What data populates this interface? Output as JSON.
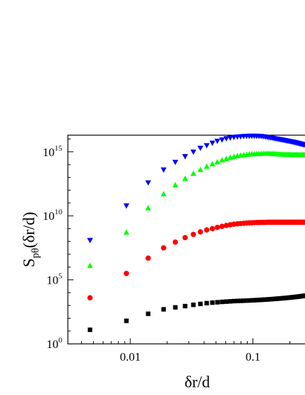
{
  "chart_data": {
    "type": "scatter",
    "title": "",
    "xlabel": "δr/d",
    "ylabel_main": "S",
    "ylabel_sub": "pθ",
    "ylabel_tail": "(δr/d)",
    "xscale": "log",
    "yscale": "log",
    "xlim": [
      0.0031,
      0.28
    ],
    "ylim_exponent": [
      0,
      16.3
    ],
    "xticks": [
      {
        "value": 0.01,
        "label": "0.01"
      },
      {
        "value": 0.1,
        "label": "0.1"
      }
    ],
    "yticks": [
      {
        "exp": 0,
        "mantissa": "10",
        "sup": "0"
      },
      {
        "exp": 5,
        "mantissa": "10",
        "sup": "5"
      },
      {
        "exp": 10,
        "mantissa": "10",
        "sup": "10"
      },
      {
        "exp": 15,
        "mantissa": "10",
        "sup": "15"
      }
    ],
    "grid": false,
    "legend": "none",
    "x": [
      0.0047,
      0.0093,
      0.014,
      0.0187,
      0.0233,
      0.028,
      0.0327,
      0.0373,
      0.042,
      0.0467,
      0.0513,
      0.056,
      0.0607,
      0.0653,
      0.07,
      0.0747,
      0.0793,
      0.084,
      0.0887,
      0.0933,
      0.098,
      0.1027,
      0.1073,
      0.112,
      0.1167,
      0.1213,
      0.126,
      0.1307,
      0.1353,
      0.14,
      0.1447,
      0.1493,
      0.154,
      0.1587,
      0.1633,
      0.168,
      0.1727,
      0.1773,
      0.182,
      0.1867,
      0.1913,
      0.196,
      0.2007,
      0.2053,
      0.21,
      0.2147,
      0.2193,
      0.224,
      0.2287,
      0.2333,
      0.238,
      0.2427,
      0.2473,
      0.252,
      0.2567,
      0.2613,
      0.266,
      0.2707,
      0.2753,
      0.28
    ],
    "series": [
      {
        "color": "#000000",
        "marker": "square",
        "log10_values": [
          1.1,
          1.8,
          2.35,
          2.7,
          2.85,
          2.95,
          3.05,
          3.12,
          3.18,
          3.22,
          3.25,
          3.28,
          3.3,
          3.32,
          3.34,
          3.35,
          3.36,
          3.37,
          3.38,
          3.39,
          3.4,
          3.41,
          3.42,
          3.43,
          3.44,
          3.45,
          3.46,
          3.47,
          3.48,
          3.49,
          3.5,
          3.51,
          3.52,
          3.53,
          3.54,
          3.55,
          3.56,
          3.57,
          3.58,
          3.59,
          3.6,
          3.61,
          3.62,
          3.63,
          3.64,
          3.65,
          3.66,
          3.67,
          3.68,
          3.69,
          3.7,
          3.71,
          3.72,
          3.73,
          3.74,
          3.75,
          3.76,
          3.77,
          3.78,
          3.79
        ]
      },
      {
        "color": "#ff0000",
        "marker": "circle",
        "log10_values": [
          3.6,
          5.5,
          6.7,
          7.5,
          7.95,
          8.3,
          8.55,
          8.75,
          8.9,
          9.0,
          9.1,
          9.18,
          9.25,
          9.3,
          9.35,
          9.38,
          9.4,
          9.42,
          9.44,
          9.45,
          9.46,
          9.47,
          9.48,
          9.48,
          9.49,
          9.49,
          9.49,
          9.5,
          9.5,
          9.5,
          9.5,
          9.5,
          9.5,
          9.5,
          9.5,
          9.5,
          9.5,
          9.5,
          9.5,
          9.5,
          9.5,
          9.5,
          9.5,
          9.5,
          9.5,
          9.5,
          9.5,
          9.5,
          9.5,
          9.5,
          9.5,
          9.5,
          9.5,
          9.5,
          9.5,
          9.5,
          9.5,
          9.5,
          9.5,
          9.5
        ]
      },
      {
        "color": "#00ff00",
        "marker": "triangle-up",
        "log10_values": [
          6.1,
          8.7,
          10.6,
          11.7,
          12.4,
          12.9,
          13.3,
          13.6,
          13.85,
          14.05,
          14.2,
          14.35,
          14.45,
          14.55,
          14.62,
          14.68,
          14.72,
          14.75,
          14.78,
          14.8,
          14.82,
          14.83,
          14.84,
          14.85,
          14.85,
          14.86,
          14.86,
          14.86,
          14.86,
          14.85,
          14.85,
          14.84,
          14.83,
          14.82,
          14.81,
          14.8,
          14.8,
          14.79,
          14.79,
          14.78,
          14.78,
          14.78,
          14.77,
          14.77,
          14.77,
          14.76,
          14.76,
          14.76,
          14.76,
          14.75,
          14.75,
          14.75,
          14.75,
          14.75,
          14.75,
          14.75,
          14.75,
          14.75,
          14.75,
          14.75
        ]
      },
      {
        "color": "#0000ff",
        "marker": "triangle-down",
        "log10_values": [
          8.1,
          10.8,
          12.6,
          13.6,
          14.2,
          14.65,
          15.0,
          15.3,
          15.5,
          15.7,
          15.85,
          15.95,
          16.05,
          16.1,
          16.15,
          16.18,
          16.2,
          16.22,
          16.23,
          16.24,
          16.24,
          16.24,
          16.24,
          16.23,
          16.22,
          16.2,
          16.18,
          16.15,
          16.12,
          16.1,
          16.08,
          16.05,
          16.02,
          16.0,
          15.98,
          15.96,
          15.94,
          15.92,
          15.9,
          15.88,
          15.86,
          15.84,
          15.82,
          15.8,
          15.78,
          15.76,
          15.74,
          15.72,
          15.7,
          15.68,
          15.66,
          15.64,
          15.62,
          15.6,
          15.58,
          15.57,
          15.56,
          15.55,
          15.54,
          15.53
        ]
      }
    ]
  }
}
